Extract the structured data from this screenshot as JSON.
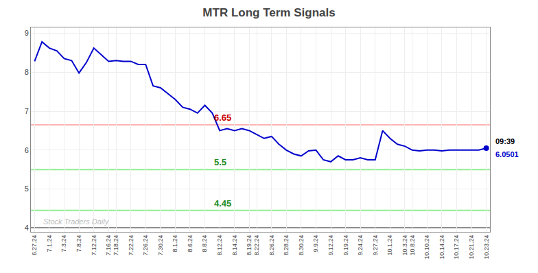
{
  "chart_data": {
    "type": "line",
    "title": "MTR Long Term Signals",
    "categories": [
      "6.27.24",
      null,
      "7.1.24",
      null,
      "7.3.24",
      null,
      "7.8.24",
      null,
      "7.12.24",
      null,
      "7.16.24",
      "7.18.24",
      null,
      "7.22.24",
      null,
      "7.26.24",
      null,
      "7.30.24",
      null,
      "8.1.24",
      null,
      "8.6.24",
      null,
      "8.8.24",
      null,
      "8.12.24",
      null,
      "8.14.24",
      null,
      "8.19.24",
      "8.22.24",
      null,
      "8.26.24",
      null,
      "8.28.24",
      null,
      "8.30.24",
      null,
      "9.9.24",
      null,
      "9.12.24",
      null,
      "9.19.24",
      null,
      "9.24.24",
      null,
      "9.27.24",
      null,
      "10.1.24",
      null,
      "10.3.24",
      "10.8.24",
      null,
      "10.10.24",
      null,
      "10.14.24",
      null,
      "10.17.24",
      null,
      "10.21.24",
      null,
      "10.23.24"
    ],
    "values": [
      8.28,
      8.78,
      8.62,
      8.55,
      8.35,
      8.3,
      7.98,
      8.25,
      8.62,
      8.45,
      8.28,
      8.3,
      8.28,
      8.28,
      8.2,
      8.2,
      7.65,
      7.6,
      7.45,
      7.3,
      7.1,
      7.05,
      6.95,
      7.15,
      6.95,
      6.5,
      6.55,
      6.5,
      6.55,
      6.5,
      6.4,
      6.3,
      6.35,
      6.15,
      6.0,
      5.9,
      5.85,
      5.98,
      6.0,
      5.75,
      5.7,
      5.85,
      5.75,
      5.75,
      5.8,
      5.75,
      5.75,
      6.5,
      6.3,
      6.15,
      6.1,
      6.0,
      5.98,
      6.0,
      6.0,
      5.98,
      6.0,
      6.0,
      6.0,
      6.0,
      6.0,
      6.05
    ],
    "color": "#0000cc",
    "ylim": [
      3.9,
      9.15
    ],
    "yticks": [
      4,
      5,
      6,
      7,
      8,
      9
    ],
    "grid": true,
    "reference_lines": [
      {
        "value": 6.65,
        "color": "#ffb3b3",
        "label": "6.65",
        "label_color": "#cc0000"
      },
      {
        "value": 5.5,
        "color": "#90ee90",
        "label": "5.5",
        "label_color": "#228B22"
      },
      {
        "value": 4.45,
        "color": "#90ee90",
        "label": "4.45",
        "label_color": "#228B22"
      },
      {
        "value": 4.0,
        "color": "#555555"
      }
    ],
    "watermark": {
      "text": "Stock Traders Daily",
      "color": "#bbbbbb"
    },
    "last_point_labels": [
      {
        "text": "09:39",
        "color": "#000000"
      },
      {
        "text": "6.0501",
        "color": "#0000cc"
      }
    ]
  }
}
